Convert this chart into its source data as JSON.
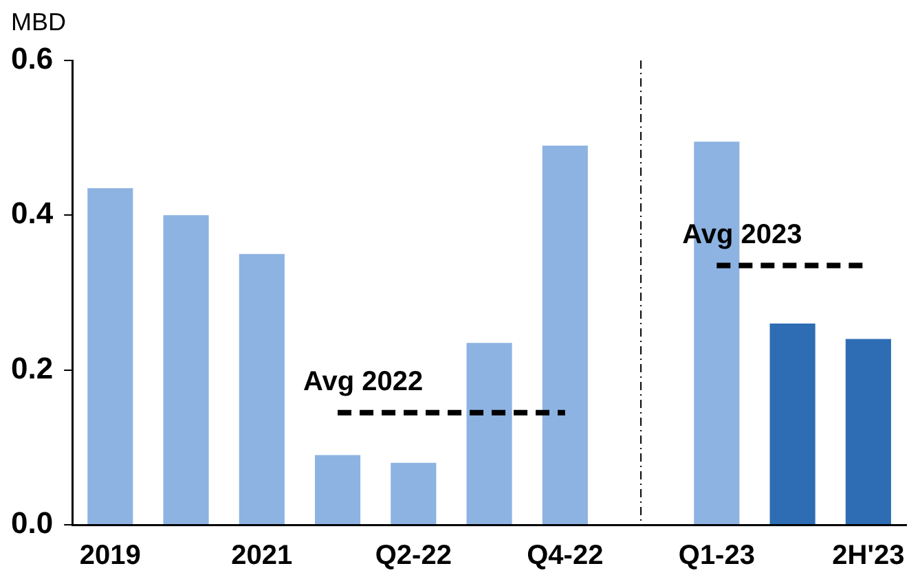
{
  "chart_data": {
    "type": "bar",
    "ylabel": "MBD",
    "categories": [
      "2019",
      null,
      "2021",
      null,
      "Q2-22",
      null,
      "Q4-22",
      null,
      "Q1-23",
      null,
      "2H'23"
    ],
    "series": [
      {
        "type": "bar",
        "colors": [
          "#8db3e2",
          "#8db3e2",
          "#8db3e2",
          "#8db3e2",
          "#8db3e2",
          "#8db3e2",
          "#8db3e2",
          "#8db3e2",
          "#8db3e2",
          "#2e6db4",
          "#2e6db4"
        ],
        "values": [
          0.435,
          0.4,
          0.35,
          0.09,
          0.08,
          0.235,
          0.49,
          null,
          0.495,
          0.26,
          0.24
        ]
      },
      {
        "type": "line",
        "name": "Avg 2022",
        "color": "#000000",
        "line_style": "dashed",
        "marker": "none",
        "values": [
          null,
          null,
          null,
          0.145,
          0.145,
          0.145,
          0.145,
          null,
          null,
          null,
          null
        ]
      },
      {
        "type": "line",
        "name": "Avg 2023",
        "color": "#000000",
        "line_style": "dashed",
        "marker": "none",
        "values": [
          null,
          null,
          null,
          null,
          null,
          null,
          null,
          null,
          0.335,
          0.335,
          0.335
        ]
      }
    ],
    "ylim": [
      0,
      0.6
    ],
    "yticks": [
      {
        "value": 0,
        "label": "0.0"
      },
      0.2,
      0.4,
      0.6
    ],
    "grid": false
  }
}
